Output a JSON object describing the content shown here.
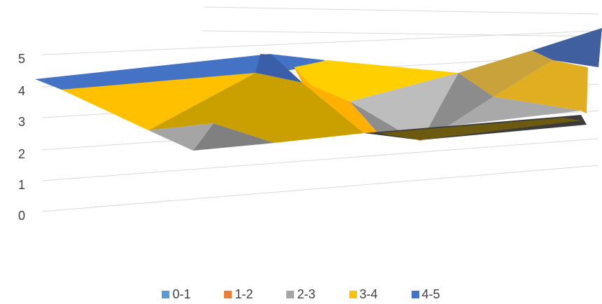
{
  "chart_data": {
    "type": "surface",
    "title": "",
    "xlabel": "",
    "ylabel": "",
    "ylim": [
      0,
      5
    ],
    "z_ticks": [
      "0",
      "1",
      "2",
      "3",
      "4",
      "5"
    ],
    "grid": true,
    "legend_position": "bottom",
    "bands": [
      {
        "name": "0-1",
        "color": "#5B9BD5"
      },
      {
        "name": "1-2",
        "color": "#ED7D31"
      },
      {
        "name": "2-3",
        "color": "#A5A5A5"
      },
      {
        "name": "3-4",
        "color": "#FFC000"
      },
      {
        "name": "4-5",
        "color": "#4472C4"
      }
    ],
    "surface_rows": [
      [
        4.1,
        3.5,
        4.6,
        2.3,
        4.1,
        2.1,
        4.7
      ],
      [
        3.6,
        2.4,
        3.9,
        2.5,
        3.5,
        2.0,
        3.2
      ],
      [
        3.8,
        1.9,
        2.1,
        2.2,
        2.7,
        2.3,
        3.3
      ]
    ]
  }
}
